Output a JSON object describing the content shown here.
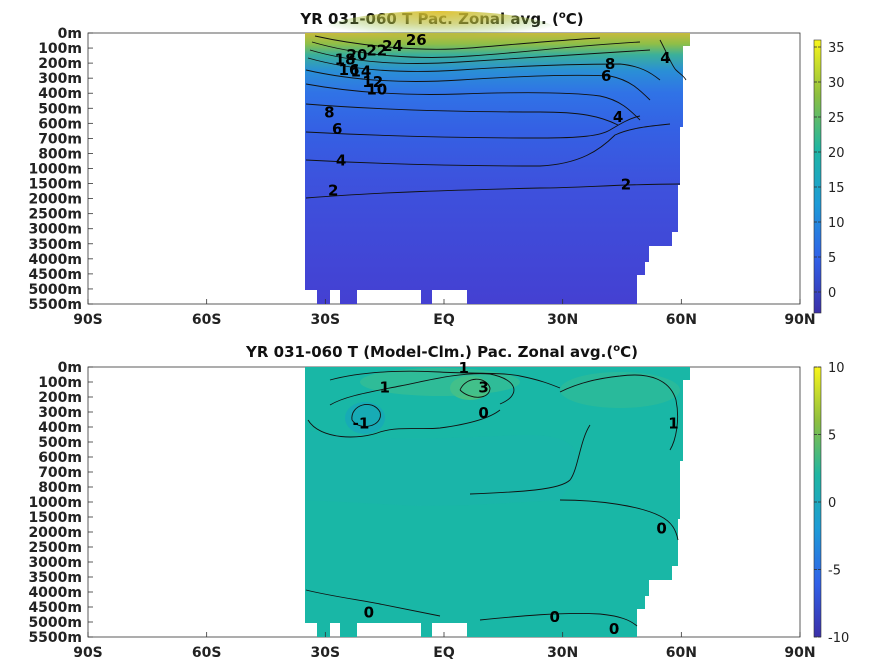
{
  "chart_data": [
    {
      "type": "heatmap",
      "title": "YR 031-060 T Pac. Zonal avg. (",
      "title_sup": "o",
      "title_end": "C)",
      "x_ticks": [
        "90S",
        "60S",
        "30S",
        "EQ",
        "30N",
        "60N",
        "90N"
      ],
      "x_range": [
        -90,
        90
      ],
      "y_ticks": [
        "0m",
        "100m",
        "200m",
        "300m",
        "400m",
        "500m",
        "600m",
        "700m",
        "800m",
        "1000m",
        "1500m",
        "2000m",
        "2500m",
        "3000m",
        "3500m",
        "4000m",
        "4500m",
        "5000m",
        "5500m"
      ],
      "colorbar": {
        "min": -3,
        "max": 36,
        "ticks": [
          "35",
          "30",
          "25",
          "20",
          "15",
          "10",
          "5",
          "0"
        ],
        "tick_values": [
          35,
          30,
          25,
          20,
          15,
          10,
          5,
          0
        ]
      },
      "data_extent_lat": [
        -35,
        62
      ],
      "contour_labels": [
        {
          "text": "26",
          "lat": -7,
          "depth_index": 0.6
        },
        {
          "text": "24",
          "lat": -13,
          "depth_index": 1.0
        },
        {
          "text": "22",
          "lat": -17,
          "depth_index": 1.3
        },
        {
          "text": "20",
          "lat": -22,
          "depth_index": 1.6
        },
        {
          "text": "18",
          "lat": -25,
          "depth_index": 1.9
        },
        {
          "text": "16",
          "lat": -24,
          "depth_index": 2.6
        },
        {
          "text": "14",
          "lat": -21,
          "depth_index": 2.7
        },
        {
          "text": "12",
          "lat": -18,
          "depth_index": 3.4
        },
        {
          "text": "10",
          "lat": -17,
          "depth_index": 3.9
        },
        {
          "text": "8",
          "lat": -29,
          "depth_index": 5.4
        },
        {
          "text": "6",
          "lat": -27,
          "depth_index": 6.5
        },
        {
          "text": "4",
          "lat": -26,
          "depth_index": 8.6
        },
        {
          "text": "2",
          "lat": -28,
          "depth_index": 10.6
        },
        {
          "text": "2",
          "lat": 46,
          "depth_index": 10.2
        },
        {
          "text": "4",
          "lat": 44,
          "depth_index": 5.7
        },
        {
          "text": "6",
          "lat": 41,
          "depth_index": 3.0
        },
        {
          "text": "8",
          "lat": 42,
          "depth_index": 2.2
        },
        {
          "text": "4",
          "lat": 56,
          "depth_index": 1.8
        }
      ]
    },
    {
      "type": "heatmap",
      "title": "YR 031-060 T (Model-Clm.) Pac. Zonal avg.(",
      "title_sup": "o",
      "title_end": "C)",
      "x_ticks": [
        "90S",
        "60S",
        "30S",
        "EQ",
        "30N",
        "60N",
        "90N"
      ],
      "x_range": [
        -90,
        90
      ],
      "y_ticks": [
        "0m",
        "100m",
        "200m",
        "300m",
        "400m",
        "500m",
        "600m",
        "700m",
        "800m",
        "1000m",
        "1500m",
        "2000m",
        "2500m",
        "3000m",
        "3500m",
        "4000m",
        "4500m",
        "5000m",
        "5500m"
      ],
      "colorbar": {
        "min": -10,
        "max": 10,
        "ticks": [
          "10",
          "5",
          "0",
          "-5",
          "-10"
        ],
        "tick_values": [
          10,
          5,
          0,
          -5,
          -10
        ]
      },
      "data_extent_lat": [
        -35,
        62
      ],
      "contour_labels": [
        {
          "text": "1",
          "lat": 5,
          "depth_index": 0.2
        },
        {
          "text": "1",
          "lat": -15,
          "depth_index": 1.5
        },
        {
          "text": "3",
          "lat": 10,
          "depth_index": 1.5
        },
        {
          "text": "0",
          "lat": 10,
          "depth_index": 3.2
        },
        {
          "text": "-1",
          "lat": -21,
          "depth_index": 3.9
        },
        {
          "text": "1",
          "lat": 58,
          "depth_index": 3.9
        },
        {
          "text": "0",
          "lat": 55,
          "depth_index": 10.9
        },
        {
          "text": "0",
          "lat": -19,
          "depth_index": 16.5
        },
        {
          "text": "0",
          "lat": 28,
          "depth_index": 16.8
        },
        {
          "text": "0",
          "lat": 43,
          "depth_index": 17.6
        }
      ]
    }
  ]
}
